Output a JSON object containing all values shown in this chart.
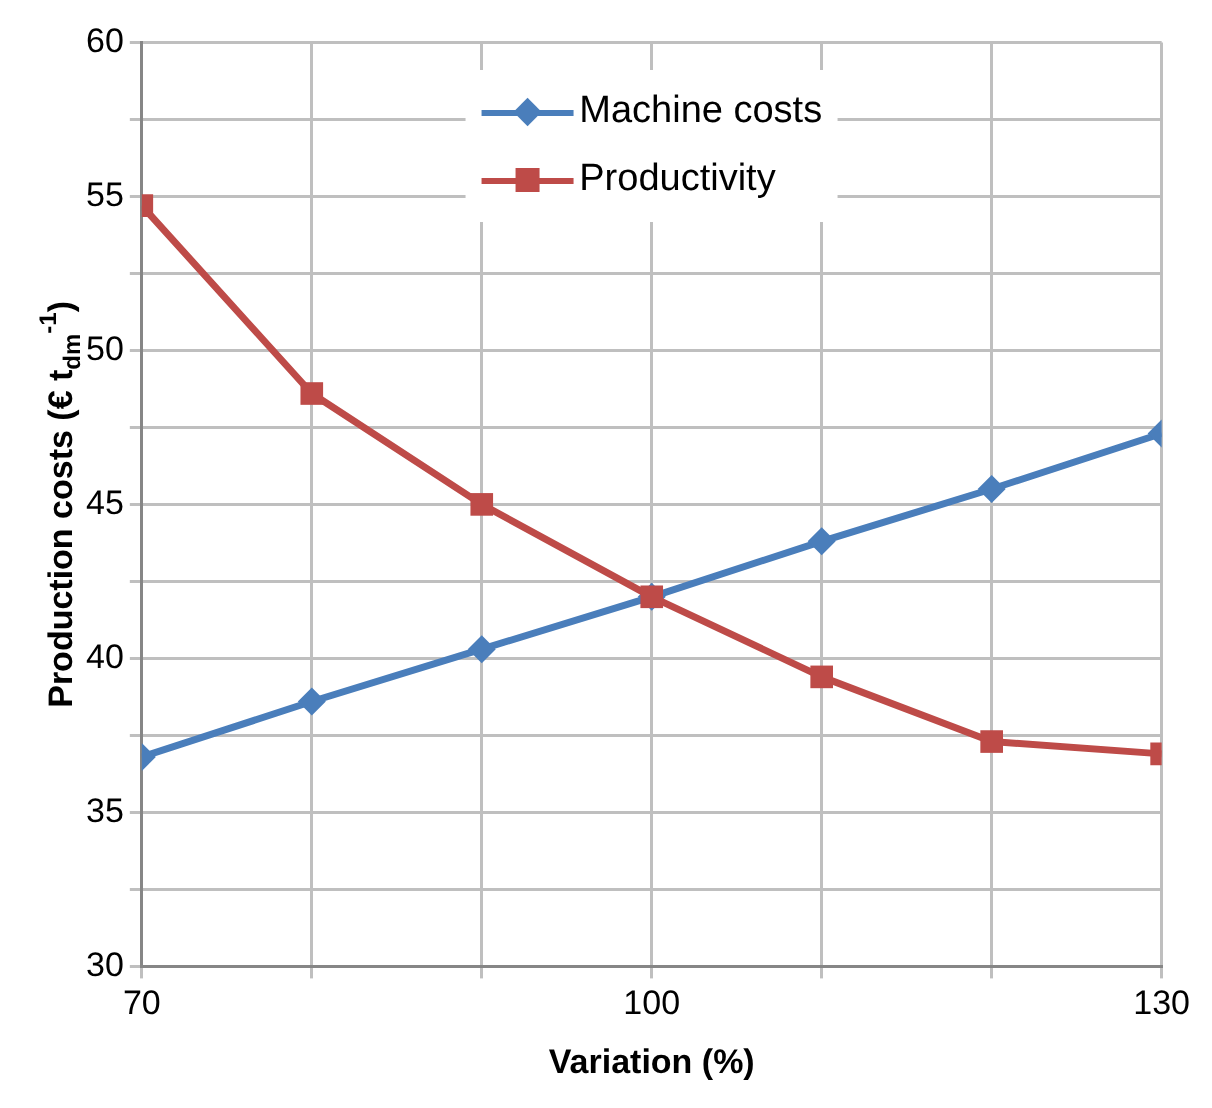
{
  "chart_data": {
    "type": "line",
    "xlabel": "Variation (%)",
    "ylabel": "Production costs (€ t$_{dm}$$^{-1}$)",
    "x": [
      70,
      80,
      90,
      100,
      110,
      120,
      130
    ],
    "series": [
      {
        "name": "Machine costs",
        "color": "#4a7ebb",
        "marker": "diamond",
        "values": [
          36.8,
          38.6,
          40.3,
          42.0,
          43.8,
          45.5,
          47.3
        ]
      },
      {
        "name": "Productivity",
        "color": "#be4b48",
        "marker": "square",
        "values": [
          54.7,
          48.6,
          45.0,
          42.0,
          39.4,
          37.3,
          36.9
        ]
      }
    ],
    "xlim": [
      70,
      130
    ],
    "xticks": [
      70,
      {
        "value": 80,
        "label": null
      },
      {
        "value": 90,
        "label": null
      },
      100,
      {
        "value": 110,
        "label": null
      },
      {
        "value": 120,
        "label": null
      },
      130
    ],
    "ylim": [
      30,
      60
    ],
    "yticks": [
      30,
      {
        "value": 32.5,
        "label": null
      },
      35,
      {
        "value": 37.5,
        "label": null
      },
      40,
      {
        "value": 42.5,
        "label": null
      },
      45,
      {
        "value": 47.5,
        "label": null
      },
      50,
      {
        "value": 52.5,
        "label": null
      },
      55,
      {
        "value": 57.5,
        "label": null
      },
      60
    ],
    "grid": true,
    "legend": "top",
    "line_style": "solid"
  }
}
